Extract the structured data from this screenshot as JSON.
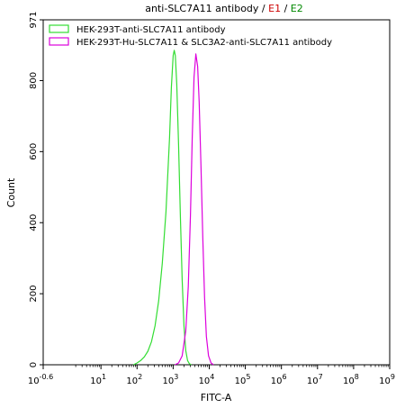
{
  "chart_data": {
    "type": "line",
    "title": {
      "prefix": "anti-SLC7A11 antibody / ",
      "e1": "E1",
      "sep": " / ",
      "e2": "E2",
      "e1_color": "#cc0000",
      "e2_color": "#008800"
    },
    "xlabel": "FITC-A",
    "ylabel": "Count",
    "x_scale": "log",
    "xlim": [
      -0.6,
      9
    ],
    "ylim": [
      0,
      971
    ],
    "x_ticks": [
      {
        "exp": "-0.6",
        "value": -0.6
      },
      {
        "exp": "1",
        "value": 1
      },
      {
        "exp": "2",
        "value": 2
      },
      {
        "exp": "3",
        "value": 3
      },
      {
        "exp": "4",
        "value": 4
      },
      {
        "exp": "5",
        "value": 5
      },
      {
        "exp": "6",
        "value": 6
      },
      {
        "exp": "7",
        "value": 7
      },
      {
        "exp": "8",
        "value": 8
      },
      {
        "exp": "9",
        "value": 9
      }
    ],
    "x_tick_base": "10",
    "y_ticks": [
      0,
      200,
      400,
      600,
      800,
      971
    ],
    "grid": false,
    "legend_position": "top-left",
    "series": [
      {
        "name": "HEK-293T-anti-SLC7A11 antibody",
        "color": "#33dd33",
        "peak_log10": 3.03,
        "peak_count": 885,
        "points": [
          [
            1.9,
            0
          ],
          [
            2.0,
            5
          ],
          [
            2.1,
            12
          ],
          [
            2.2,
            22
          ],
          [
            2.3,
            38
          ],
          [
            2.4,
            65
          ],
          [
            2.5,
            110
          ],
          [
            2.6,
            180
          ],
          [
            2.7,
            285
          ],
          [
            2.8,
            430
          ],
          [
            2.9,
            640
          ],
          [
            2.95,
            780
          ],
          [
            3.0,
            870
          ],
          [
            3.03,
            885
          ],
          [
            3.06,
            870
          ],
          [
            3.1,
            790
          ],
          [
            3.15,
            620
          ],
          [
            3.2,
            420
          ],
          [
            3.25,
            240
          ],
          [
            3.3,
            110
          ],
          [
            3.35,
            40
          ],
          [
            3.4,
            12
          ],
          [
            3.45,
            3
          ],
          [
            3.5,
            0
          ]
        ]
      },
      {
        "name": "HEK-293T-Hu-SLC7A11 & SLC3A2-anti-SLC7A11 antibody",
        "color": "#dd00dd",
        "peak_log10": 3.63,
        "peak_count": 875,
        "points": [
          [
            3.05,
            0
          ],
          [
            3.15,
            5
          ],
          [
            3.25,
            25
          ],
          [
            3.35,
            95
          ],
          [
            3.42,
            220
          ],
          [
            3.48,
            420
          ],
          [
            3.53,
            640
          ],
          [
            3.58,
            810
          ],
          [
            3.63,
            875
          ],
          [
            3.68,
            840
          ],
          [
            3.72,
            740
          ],
          [
            3.77,
            560
          ],
          [
            3.82,
            360
          ],
          [
            3.87,
            190
          ],
          [
            3.92,
            80
          ],
          [
            3.98,
            25
          ],
          [
            4.05,
            5
          ],
          [
            4.12,
            0
          ]
        ]
      }
    ]
  }
}
